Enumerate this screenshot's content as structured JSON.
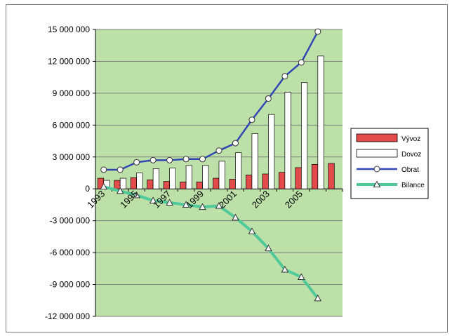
{
  "chart_data": {
    "type": "bar",
    "x": [
      "1993",
      "1994",
      "1995",
      "1996",
      "1997",
      "1998",
      "1999",
      "2000",
      "2001",
      "2002",
      "2003",
      "2004",
      "2005",
      "2006",
      "2007"
    ],
    "x_tick_labels": [
      "1993",
      "1995",
      "1997",
      "1999",
      "2001",
      "2003",
      "2005"
    ],
    "ylim": [
      -12000000,
      15000000
    ],
    "y_ticks": [
      15000000,
      12000000,
      9000000,
      6000000,
      3000000,
      0,
      -3000000,
      -6000000,
      -9000000,
      -12000000
    ],
    "y_tick_labels": [
      "15 000 000",
      "12 000 000",
      "9 000 000",
      "6 000 000",
      "3 000 000",
      "0",
      "-3 000 000",
      "-6 000 000",
      "-9 000 000",
      "-12 000 000"
    ],
    "grid": true,
    "legend_position": "right",
    "series": [
      {
        "name": "Vývoz",
        "kind": "bar",
        "color": "#e34a4a",
        "values": [
          1000000,
          800000,
          1050000,
          850000,
          700000,
          650000,
          650000,
          1000000,
          900000,
          1300000,
          1400000,
          1550000,
          2000000,
          2300000,
          2400000
        ]
      },
      {
        "name": "Dovoz",
        "kind": "bar",
        "color": "#ffffff",
        "values": [
          800000,
          1000000,
          1500000,
          1900000,
          1950000,
          2200000,
          2200000,
          2600000,
          3400000,
          5200000,
          7000000,
          9100000,
          10000000,
          12500000,
          0
        ]
      },
      {
        "name": "Obrat",
        "kind": "line",
        "color": "#2f46b4",
        "marker": "circle",
        "values": [
          1800000,
          1800000,
          2500000,
          2700000,
          2700000,
          2800000,
          2800000,
          3600000,
          4300000,
          6500000,
          8500000,
          10600000,
          11900000,
          14800000,
          null
        ]
      },
      {
        "name": "Bilance",
        "kind": "line",
        "color": "#4fc999",
        "marker": "triangle",
        "values": [
          200000,
          -200000,
          -600000,
          -1100000,
          -1300000,
          -1500000,
          -1700000,
          -1600000,
          -2700000,
          -4000000,
          -5600000,
          -7600000,
          -8300000,
          -10300000,
          null
        ]
      }
    ]
  },
  "colors": {
    "plot_background": "#bde0a9",
    "gridline": "#7f7f7f",
    "axis": "#000000",
    "frame": "#7f7f7f"
  }
}
